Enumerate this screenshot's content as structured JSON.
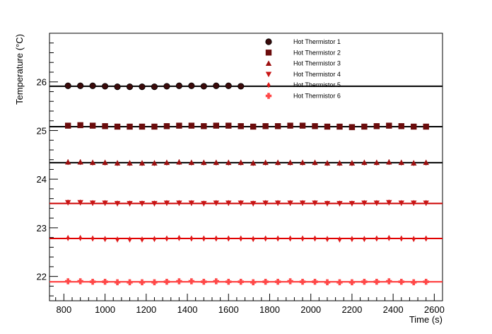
{
  "chart_data": {
    "type": "scatter",
    "xlabel": "Time (s)",
    "ylabel": "Temperature (°C)",
    "xlim": [
      730,
      2640
    ],
    "ylim": [
      21.5,
      27.0
    ],
    "x_ticks": [
      800,
      1000,
      1200,
      1400,
      1600,
      1800,
      2000,
      2200,
      2400,
      2600
    ],
    "y_ticks": [
      22,
      23,
      24,
      25,
      26
    ],
    "legend_position": "top-right",
    "series": [
      {
        "name": "Hot Thermistor 1",
        "marker": "circle",
        "color": "#3a0a0a",
        "fit_value": 25.91,
        "fit_color": "#000000",
        "fit_range": [
          730,
          2640
        ],
        "x": [
          820,
          880,
          940,
          1000,
          1060,
          1120,
          1180,
          1240,
          1300,
          1360,
          1420,
          1480,
          1540,
          1600,
          1660
        ],
        "y": [
          25.92,
          25.92,
          25.92,
          25.91,
          25.9,
          25.9,
          25.9,
          25.9,
          25.91,
          25.92,
          25.92,
          25.91,
          25.92,
          25.92,
          25.91
        ]
      },
      {
        "name": "Hot Thermistor 2",
        "marker": "square",
        "color": "#6b0c0c",
        "fit_value": 25.08,
        "fit_color": "#000000",
        "fit_range": [
          730,
          2640
        ],
        "x": [
          820,
          880,
          940,
          1000,
          1060,
          1120,
          1180,
          1240,
          1300,
          1360,
          1420,
          1480,
          1540,
          1600,
          1660,
          1720,
          1780,
          1840,
          1900,
          1960,
          2020,
          2080,
          2140,
          2200,
          2260,
          2320,
          2380,
          2440,
          2500,
          2560
        ],
        "y": [
          25.1,
          25.11,
          25.1,
          25.09,
          25.08,
          25.08,
          25.08,
          25.08,
          25.09,
          25.1,
          25.1,
          25.09,
          25.1,
          25.1,
          25.09,
          25.08,
          25.09,
          25.09,
          25.1,
          25.1,
          25.09,
          25.08,
          25.08,
          25.07,
          25.08,
          25.09,
          25.1,
          25.09,
          25.08,
          25.08
        ]
      },
      {
        "name": "Hot Thermistor 3",
        "marker": "triangle-up",
        "color": "#9c0f0f",
        "fit_value": 24.34,
        "fit_color": "#000000",
        "fit_range": [
          730,
          2640
        ],
        "x": [
          820,
          880,
          940,
          1000,
          1060,
          1120,
          1180,
          1240,
          1300,
          1360,
          1420,
          1480,
          1540,
          1600,
          1660,
          1720,
          1780,
          1840,
          1900,
          1960,
          2020,
          2080,
          2140,
          2200,
          2260,
          2320,
          2380,
          2440,
          2500,
          2560
        ],
        "y": [
          24.35,
          24.35,
          24.34,
          24.34,
          24.33,
          24.33,
          24.33,
          24.33,
          24.34,
          24.35,
          24.34,
          24.34,
          24.34,
          24.34,
          24.34,
          24.33,
          24.34,
          24.34,
          24.34,
          24.34,
          24.34,
          24.33,
          24.33,
          24.33,
          24.34,
          24.34,
          24.35,
          24.34,
          24.33,
          24.34
        ]
      },
      {
        "name": "Hot Thermistor 4",
        "marker": "triangle-down",
        "color": "#c81414",
        "fit_value": 23.5,
        "fit_color": "#cc0000",
        "fit_range": [
          730,
          2640
        ],
        "x": [
          820,
          880,
          940,
          1000,
          1060,
          1120,
          1180,
          1240,
          1300,
          1360,
          1420,
          1480,
          1540,
          1600,
          1660,
          1720,
          1780,
          1840,
          1900,
          1960,
          2020,
          2080,
          2140,
          2200,
          2260,
          2320,
          2380,
          2440,
          2500,
          2560
        ],
        "y": [
          23.52,
          23.52,
          23.51,
          23.51,
          23.5,
          23.5,
          23.5,
          23.5,
          23.51,
          23.51,
          23.51,
          23.5,
          23.51,
          23.51,
          23.51,
          23.5,
          23.51,
          23.51,
          23.51,
          23.51,
          23.51,
          23.5,
          23.5,
          23.5,
          23.51,
          23.51,
          23.52,
          23.51,
          23.51,
          23.51
        ]
      },
      {
        "name": "Hot Thermistor 5",
        "marker": "diamond",
        "color": "#e01818",
        "fit_value": 22.78,
        "fit_color": "#e00000",
        "fit_range": [
          730,
          2640
        ],
        "x": [
          820,
          880,
          940,
          1000,
          1060,
          1120,
          1180,
          1240,
          1300,
          1360,
          1420,
          1480,
          1540,
          1600,
          1660,
          1720,
          1780,
          1840,
          1900,
          1960,
          2020,
          2080,
          2140,
          2200,
          2260,
          2320,
          2380,
          2440,
          2500,
          2560
        ],
        "y": [
          22.79,
          22.79,
          22.78,
          22.77,
          22.76,
          22.76,
          22.76,
          22.77,
          22.78,
          22.79,
          22.78,
          22.78,
          22.78,
          22.78,
          22.78,
          22.77,
          22.78,
          22.78,
          22.78,
          22.78,
          22.78,
          22.77,
          22.76,
          22.77,
          22.77,
          22.78,
          22.79,
          22.78,
          22.77,
          22.78
        ]
      },
      {
        "name": "Hot Thermistor 6",
        "marker": "cross",
        "color": "#ff4848",
        "fit_value": 21.89,
        "fit_color": "#ff3030",
        "fit_range": [
          730,
          2640
        ],
        "x": [
          820,
          880,
          940,
          1000,
          1060,
          1120,
          1180,
          1240,
          1300,
          1360,
          1420,
          1480,
          1540,
          1600,
          1660,
          1720,
          1780,
          1840,
          1900,
          1960,
          2020,
          2080,
          2140,
          2200,
          2260,
          2320,
          2380,
          2440,
          2500,
          2560
        ],
        "y": [
          21.9,
          21.9,
          21.89,
          21.89,
          21.88,
          21.88,
          21.88,
          21.88,
          21.89,
          21.9,
          21.9,
          21.89,
          21.9,
          21.89,
          21.89,
          21.88,
          21.89,
          21.89,
          21.9,
          21.89,
          21.89,
          21.88,
          21.88,
          21.88,
          21.89,
          21.89,
          21.9,
          21.89,
          21.88,
          21.89
        ]
      }
    ]
  }
}
